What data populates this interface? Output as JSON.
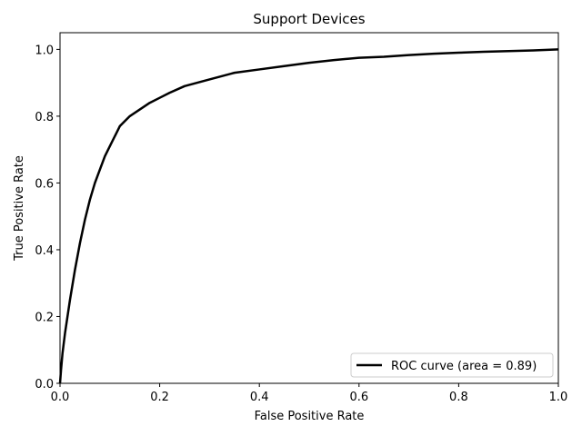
{
  "chart_data": {
    "type": "line",
    "title": "Support Devices",
    "xlabel": "False Positive Rate",
    "ylabel": "True Positive Rate",
    "xlim": [
      0.0,
      1.0
    ],
    "ylim": [
      0.0,
      1.05
    ],
    "x_ticks": [
      "0.0",
      "0.2",
      "0.4",
      "0.6",
      "0.8",
      "1.0"
    ],
    "y_ticks": [
      "0.0",
      "0.2",
      "0.4",
      "0.6",
      "0.8",
      "1.0"
    ],
    "grid": false,
    "legend_position": "lower-right",
    "series": [
      {
        "name": "ROC curve (area = 0.89)",
        "color": "#000000",
        "x": [
          0.0,
          0.002,
          0.005,
          0.01,
          0.015,
          0.02,
          0.03,
          0.04,
          0.05,
          0.06,
          0.07,
          0.08,
          0.09,
          0.1,
          0.12,
          0.14,
          0.16,
          0.18,
          0.2,
          0.22,
          0.25,
          0.3,
          0.35,
          0.4,
          0.45,
          0.5,
          0.55,
          0.6,
          0.65,
          0.7,
          0.75,
          0.8,
          0.85,
          0.9,
          0.95,
          1.0
        ],
        "y": [
          0.0,
          0.04,
          0.09,
          0.15,
          0.2,
          0.25,
          0.34,
          0.42,
          0.49,
          0.55,
          0.6,
          0.64,
          0.68,
          0.71,
          0.77,
          0.8,
          0.82,
          0.84,
          0.855,
          0.87,
          0.89,
          0.91,
          0.93,
          0.94,
          0.95,
          0.96,
          0.968,
          0.975,
          0.978,
          0.983,
          0.987,
          0.99,
          0.993,
          0.995,
          0.997,
          1.0
        ]
      }
    ]
  }
}
